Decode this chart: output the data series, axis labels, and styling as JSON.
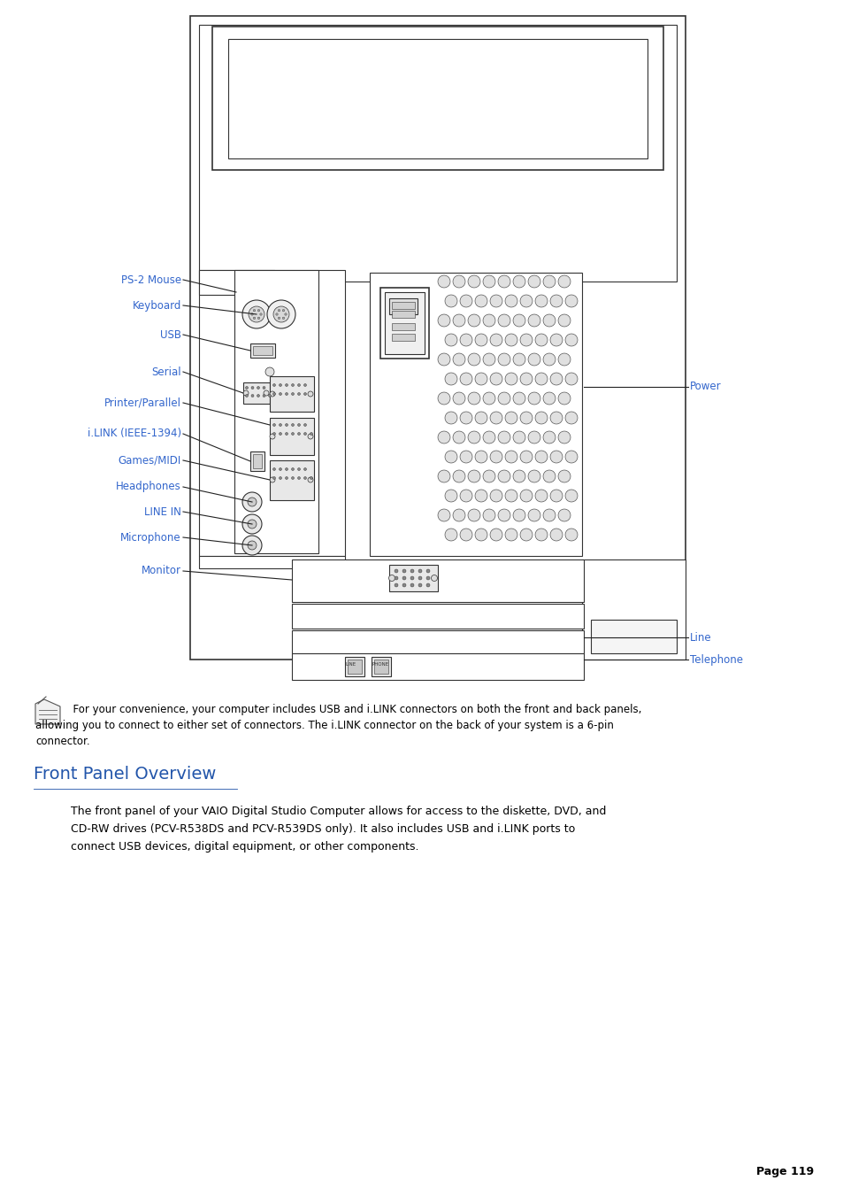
{
  "page_width": 9.54,
  "page_height": 13.51,
  "bg_color": "#ffffff",
  "label_color": "#3366cc",
  "line_color": "#222222",
  "diagram_color": "#333333",
  "body_text_color": "#000000",
  "note_text_color": "#000000",
  "heading_color": "#2255aa",
  "heading": "Front Panel Overview",
  "note_text_line1": "  For your convenience, your computer includes USB and i.LINK connectors on both the front and back panels,",
  "note_text_line2": "allowing you to connect to either set of connectors. The i.LINK connector on the back of your system is a 6-pin",
  "note_text_line3": "connector.",
  "body_text_line1": "The front panel of your VAIO Digital Studio Computer allows for access to the diskette, DVD, and",
  "body_text_line2": "CD-RW drives (PCV-R538DS and PCV-R539DS only). It also includes USB and i.LINK ports to",
  "body_text_line3": "connect USB devices, digital equipment, or other components.",
  "page_num": "Page 119"
}
